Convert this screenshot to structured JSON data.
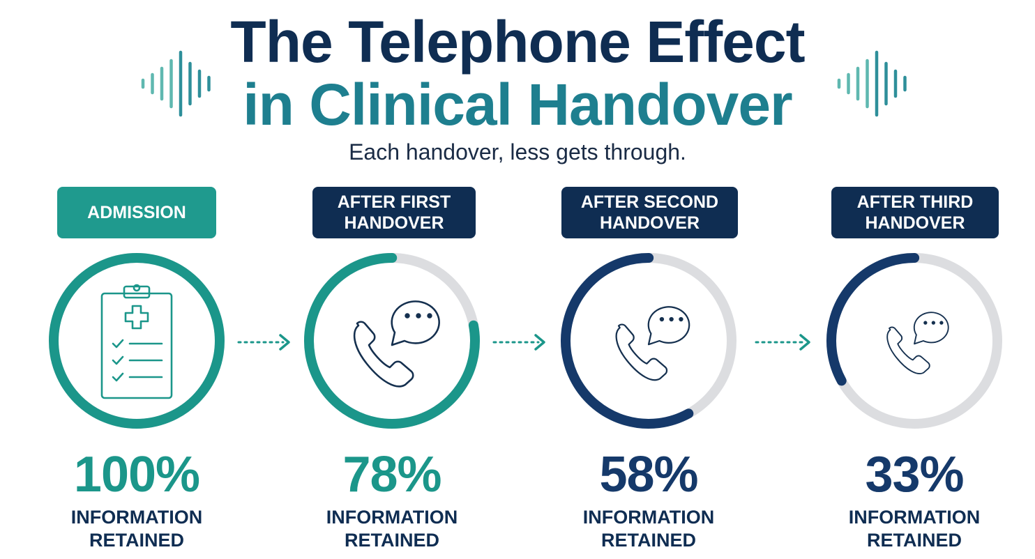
{
  "header": {
    "title": [
      "The Telephone Effect",
      "in Clinical Handover"
    ],
    "subtitle": "Each handover, less gets through."
  },
  "stages": [
    {
      "label": "ADMISSION",
      "value": 100,
      "value_label": "100%",
      "caption": "INFORMATION RETAINED",
      "color": "#1b968a",
      "label_color": "#1f9a8e"
    },
    {
      "label": "AFTER FIRST HANDOVER",
      "value": 78,
      "value_label": "78%",
      "caption": "INFORMATION RETAINED",
      "color": "#1b968a",
      "label_color": "#0f2d52"
    },
    {
      "label": "AFTER SECOND HANDOVER",
      "value": 58,
      "value_label": "58%",
      "caption": "INFORMATION RETAINED",
      "color": "#15396a",
      "label_color": "#0f2d52"
    },
    {
      "label": "AFTER THIRD HANDOVER",
      "value": 33,
      "value_label": "33%",
      "caption": "INFORMATION RETAINED",
      "color": "#15396a",
      "label_color": "#0f2d52"
    }
  ]
}
